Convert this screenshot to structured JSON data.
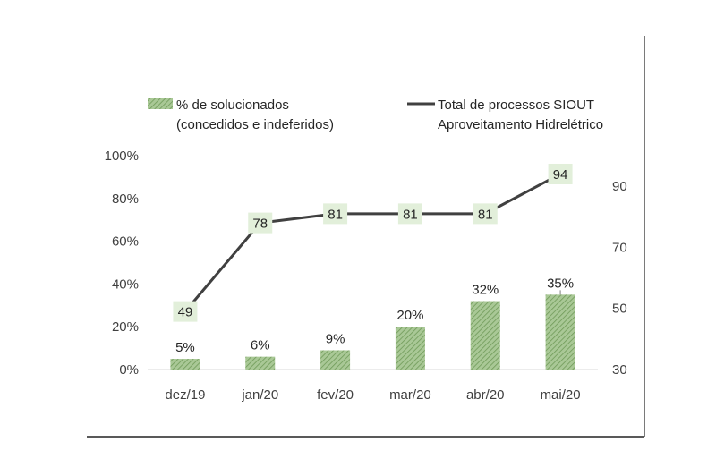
{
  "chart_data": {
    "type": "bar",
    "categories": [
      "dez/19",
      "jan/20",
      "fev/20",
      "mar/20",
      "abr/20",
      "mai/20"
    ],
    "series": [
      {
        "name": "% de  solucionados (concedidos e indeferidos)",
        "legend_lines": [
          "% de  solucionados",
          "(concedidos e indeferidos)"
        ],
        "type": "bar",
        "axis": "left",
        "values": [
          5,
          6,
          9,
          20,
          32,
          35
        ],
        "labels": [
          "5%",
          "6%",
          "9%",
          "20%",
          "32%",
          "35%"
        ],
        "color": "#8fb37a"
      },
      {
        "name": "Total de processos SIOUT Aproveitamento Hidrelétrico",
        "legend_lines": [
          "Total de processos SIOUT",
          "Aproveitamento Hidrelétrico"
        ],
        "type": "line",
        "axis": "right",
        "values": [
          49,
          78,
          81,
          81,
          81,
          94
        ],
        "labels": [
          "49",
          "78",
          "81",
          "81",
          "81",
          "94"
        ],
        "color": "#404040",
        "label_bg": "#e2efda"
      }
    ],
    "y_left": {
      "ylim": [
        0,
        100
      ],
      "ticks": [
        0,
        20,
        40,
        60,
        80,
        100
      ],
      "tick_labels": [
        "0%",
        "20%",
        "40%",
        "60%",
        "80%",
        "100%"
      ]
    },
    "y_right": {
      "ylim": [
        30,
        100
      ],
      "ticks": [
        30,
        50,
        70,
        90
      ],
      "tick_labels": [
        "30",
        "50",
        "70",
        "90"
      ]
    },
    "grid": false,
    "legend_position": "top"
  }
}
